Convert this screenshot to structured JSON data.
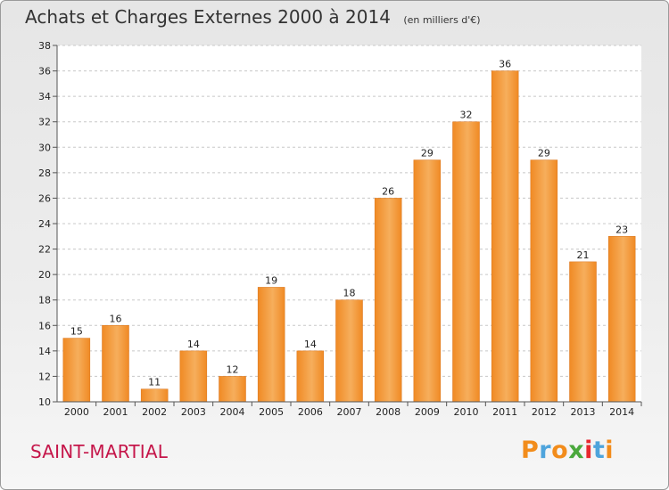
{
  "header": {
    "title": "Achats et Charges Externes 2000 à 2014",
    "subtitle": "(en milliers d'€)"
  },
  "footer": {
    "commune": "SAINT-MARTIAL",
    "brand": "Proxiti",
    "brand_colors": [
      "#f28c1b",
      "#4ea4dc",
      "#f28c1b",
      "#4aa83c",
      "#e8272e",
      "#4ea4dc",
      "#f28c1b"
    ]
  },
  "colors": {
    "bar": "#f08a24",
    "bar_light": "#f6ae5c",
    "grid": "#c8c8c8"
  },
  "chart_data": {
    "type": "bar",
    "categories": [
      "2000",
      "2001",
      "2002",
      "2003",
      "2004",
      "2005",
      "2006",
      "2007",
      "2008",
      "2009",
      "2010",
      "2011",
      "2012",
      "2013",
      "2014"
    ],
    "values": [
      15,
      16,
      11,
      14,
      12,
      19,
      14,
      18,
      26,
      29,
      32,
      36,
      29,
      21,
      23
    ],
    "ylim": [
      10,
      38
    ],
    "yticks": [
      10,
      12,
      14,
      16,
      18,
      20,
      22,
      24,
      26,
      28,
      30,
      32,
      34,
      36,
      38
    ],
    "grid": true,
    "xlabel": "",
    "ylabel": ""
  }
}
